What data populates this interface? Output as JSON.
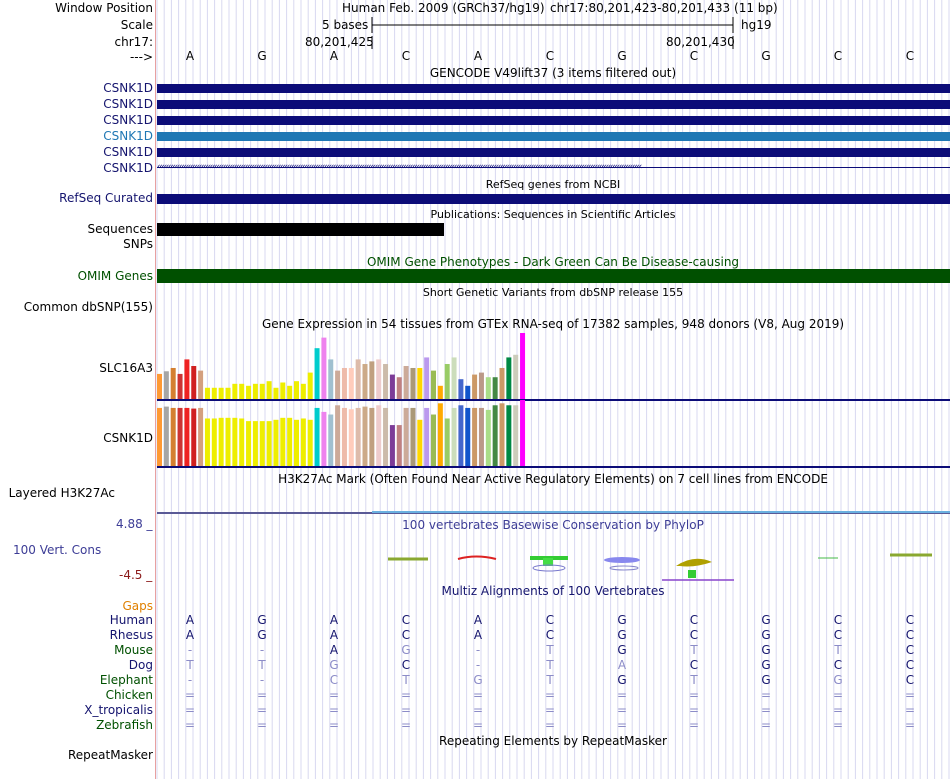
{
  "colors": {
    "navy": "#0c0c78",
    "refseq": "#0c0c78",
    "highlight": "#1f77b4",
    "omim": "#005000",
    "label_blue": "#14146e",
    "grid": "#d8d8f0",
    "redline": "#d33",
    "gaps": "#e08000",
    "phylop": "#3c3c96",
    "dim": "#8c8cc8"
  },
  "header": {
    "window_position_label": "Window Position",
    "scale_label": "Scale",
    "chrom_label": "chr17:",
    "arrow_label": "--->",
    "assembly": "Human Feb. 2009 (GRCh37/hg19)",
    "position": "chr17:80,201,423-80,201,433 (11 bp)",
    "scale_text": "5 bases",
    "scale_db": "hg19",
    "coord_left": "80,201,425",
    "coord_right": "80,201,430"
  },
  "sequence": [
    "A",
    "G",
    "A",
    "C",
    "A",
    "C",
    "G",
    "C",
    "G",
    "C",
    "C"
  ],
  "gencode": {
    "title": "GENCODE V49lift37 (3 items filtered out)",
    "items": [
      {
        "label": "CSNK1D",
        "style": "navy"
      },
      {
        "label": "CSNK1D",
        "style": "navy"
      },
      {
        "label": "CSNK1D",
        "style": "navy"
      },
      {
        "label": "CSNK1D",
        "style": "highlight"
      },
      {
        "label": "CSNK1D",
        "style": "navy"
      },
      {
        "label": "CSNK1D",
        "style": "arrows"
      }
    ]
  },
  "refseq": {
    "title": "RefSeq genes from NCBI",
    "label": "RefSeq Curated"
  },
  "publications": {
    "title": "Publications: Sequences in Scientific Articles",
    "label": "Sequences"
  },
  "snps_label": "SNPs",
  "omim": {
    "title": "OMIM Gene Phenotypes - Dark Green Can Be Disease-causing",
    "label": "OMIM Genes"
  },
  "dbsnp": {
    "title": "Short Genetic Variants from dbSNP release 155",
    "label": "Common dbSNP(155)"
  },
  "gtex": {
    "title": "Gene Expression in 54 tissues from GTEx RNA-seq of 17382 samples, 948 donors (V8, Aug 2019)",
    "genes": [
      {
        "label": "SLC16A3",
        "values": [
          0.38,
          0.42,
          0.47,
          0.38,
          0.6,
          0.5,
          0.43,
          0.17,
          0.17,
          0.17,
          0.17,
          0.23,
          0.23,
          0.2,
          0.23,
          0.23,
          0.27,
          0.17,
          0.25,
          0.2,
          0.27,
          0.23,
          0.4,
          0.77,
          0.93,
          0.6,
          0.43,
          0.47,
          0.47,
          0.6,
          0.53,
          0.57,
          0.6,
          0.53,
          0.37,
          0.33,
          0.5,
          0.47,
          0.47,
          0.63,
          0.43,
          0.2,
          0.53,
          0.63,
          0.3,
          0.2,
          0.37,
          0.4,
          0.33,
          0.33,
          0.47,
          0.63,
          0.67,
          1.0
        ]
      },
      {
        "label": "CSNK1D",
        "values": [
          0.88,
          0.9,
          0.88,
          0.88,
          0.88,
          0.87,
          0.88,
          0.72,
          0.72,
          0.73,
          0.73,
          0.73,
          0.72,
          0.68,
          0.68,
          0.68,
          0.68,
          0.7,
          0.73,
          0.73,
          0.7,
          0.72,
          0.7,
          0.88,
          0.82,
          0.78,
          0.92,
          0.88,
          0.86,
          0.88,
          0.9,
          0.88,
          0.92,
          0.88,
          0.62,
          0.62,
          0.88,
          0.88,
          0.7,
          0.88,
          0.78,
          0.95,
          0.72,
          0.88,
          0.92,
          0.88,
          0.88,
          0.88,
          0.85,
          0.92,
          0.95,
          0.92,
          0.92,
          1.0
        ]
      }
    ],
    "tissue_colors": [
      "#ff9933",
      "#a6a6a6",
      "#d47f31",
      "#cc3333",
      "#ee2222",
      "#d02020",
      "#d4a07f",
      "#eeee00",
      "#eeee00",
      "#eeee00",
      "#eeee00",
      "#eeee00",
      "#eeee00",
      "#eeee00",
      "#eeee00",
      "#eeee00",
      "#eeee00",
      "#eeee00",
      "#eeee00",
      "#eeee00",
      "#eeee00",
      "#eeee00",
      "#eeee00",
      "#00cccc",
      "#ee82ee",
      "#a0c0d0",
      "#ccaa99",
      "#eebbaa",
      "#ffccbb",
      "#ddbbaa",
      "#ccaa88",
      "#c0a080",
      "#eecccc",
      "#ccbbaa",
      "#7d3c98",
      "#c08080",
      "#ccaa99",
      "#aa9977",
      "#ffd700",
      "#bb99ee",
      "#99bb55",
      "#ffaa00",
      "#99cc66",
      "#ccddbb",
      "#4466cc",
      "#1155cc",
      "#cc9966",
      "#bb9988",
      "#aadd88",
      "#448844",
      "#cc9966",
      "#008844",
      "#ccccbb",
      "#ff00ff"
    ]
  },
  "h3k27ac": {
    "title": "H3K27Ac Mark (Often Found Near Active Regulatory Elements) on 7 cell lines from ENCODE",
    "label": "Layered H3K27Ac"
  },
  "phylop": {
    "title": "100 vertebrates Basewise Conservation by PhyloP",
    "label": "100 Vert. Cons",
    "max": "4.88 _",
    "min": "-4.5 _"
  },
  "multiz": {
    "title": "Multiz Alignments of 100 Vertebrates",
    "gaps_label": "Gaps",
    "species": [
      {
        "name": "Human",
        "bases": [
          "A",
          "G",
          "A",
          "C",
          "A",
          "C",
          "G",
          "C",
          "G",
          "C",
          "C"
        ],
        "dim": [
          0,
          0,
          0,
          0,
          0,
          0,
          0,
          0,
          0,
          0,
          0
        ],
        "color": "#14146e"
      },
      {
        "name": "Rhesus",
        "bases": [
          "A",
          "G",
          "A",
          "C",
          "A",
          "C",
          "G",
          "C",
          "G",
          "C",
          "C"
        ],
        "dim": [
          0,
          0,
          0,
          0,
          0,
          0,
          0,
          0,
          0,
          0,
          0
        ],
        "color": "#14146e"
      },
      {
        "name": "Mouse",
        "bases": [
          "-",
          "-",
          "A",
          "G",
          "-",
          "T",
          "G",
          "T",
          "G",
          "T",
          "C"
        ],
        "dim": [
          1,
          1,
          0,
          1,
          1,
          1,
          0,
          1,
          0,
          1,
          0
        ],
        "color": "#005000"
      },
      {
        "name": "Dog",
        "bases": [
          "T",
          "T",
          "G",
          "C",
          "-",
          "T",
          "A",
          "C",
          "G",
          "C",
          "C"
        ],
        "dim": [
          1,
          1,
          1,
          0,
          1,
          1,
          1,
          0,
          0,
          0,
          0
        ],
        "color": "#14146e"
      },
      {
        "name": "Elephant",
        "bases": [
          "-",
          "-",
          "C",
          "T",
          "G",
          "T",
          "G",
          "T",
          "G",
          "G",
          "C"
        ],
        "dim": [
          1,
          1,
          1,
          1,
          1,
          1,
          0,
          1,
          0,
          1,
          0
        ],
        "color": "#005000"
      },
      {
        "name": "Chicken",
        "bases": [
          "=",
          "=",
          "=",
          "=",
          "=",
          "=",
          "=",
          "=",
          "=",
          "=",
          "="
        ],
        "dim": [
          1,
          1,
          1,
          1,
          1,
          1,
          1,
          1,
          1,
          1,
          1
        ],
        "color": "#005000"
      },
      {
        "name": "X_tropicalis",
        "bases": [
          "=",
          "=",
          "=",
          "=",
          "=",
          "=",
          "=",
          "=",
          "=",
          "=",
          "="
        ],
        "dim": [
          1,
          1,
          1,
          1,
          1,
          1,
          1,
          1,
          1,
          1,
          1
        ],
        "color": "#14146e"
      },
      {
        "name": "Zebrafish",
        "bases": [
          "=",
          "=",
          "=",
          "=",
          "=",
          "=",
          "=",
          "=",
          "=",
          "=",
          "="
        ],
        "dim": [
          1,
          1,
          1,
          1,
          1,
          1,
          1,
          1,
          1,
          1,
          1
        ],
        "color": "#005000"
      }
    ]
  },
  "repeatmasker": {
    "title": "Repeating Elements by RepeatMasker",
    "label": "RepeatMasker"
  }
}
